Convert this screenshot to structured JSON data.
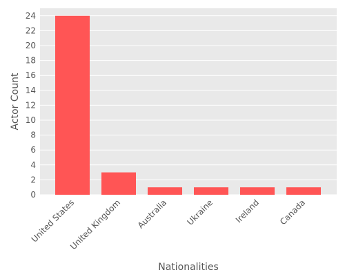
{
  "chart_data": {
    "type": "bar",
    "title": "",
    "xlabel": "Nationalities",
    "ylabel": "Actor Count",
    "categories": [
      "United States",
      "United Kingdom",
      "Australia",
      "Ukraine",
      "Ireland",
      "Canada"
    ],
    "values": [
      24,
      3,
      1,
      1,
      1,
      1
    ],
    "ylim": [
      0,
      25
    ],
    "yticks": [
      0,
      2,
      4,
      6,
      8,
      10,
      12,
      14,
      16,
      18,
      20,
      22,
      24
    ],
    "grid": true,
    "colors": {
      "bar": "#ff5555",
      "plot_background": "#e9e9e9",
      "grid": "#ffffff",
      "text": "#555555"
    }
  }
}
